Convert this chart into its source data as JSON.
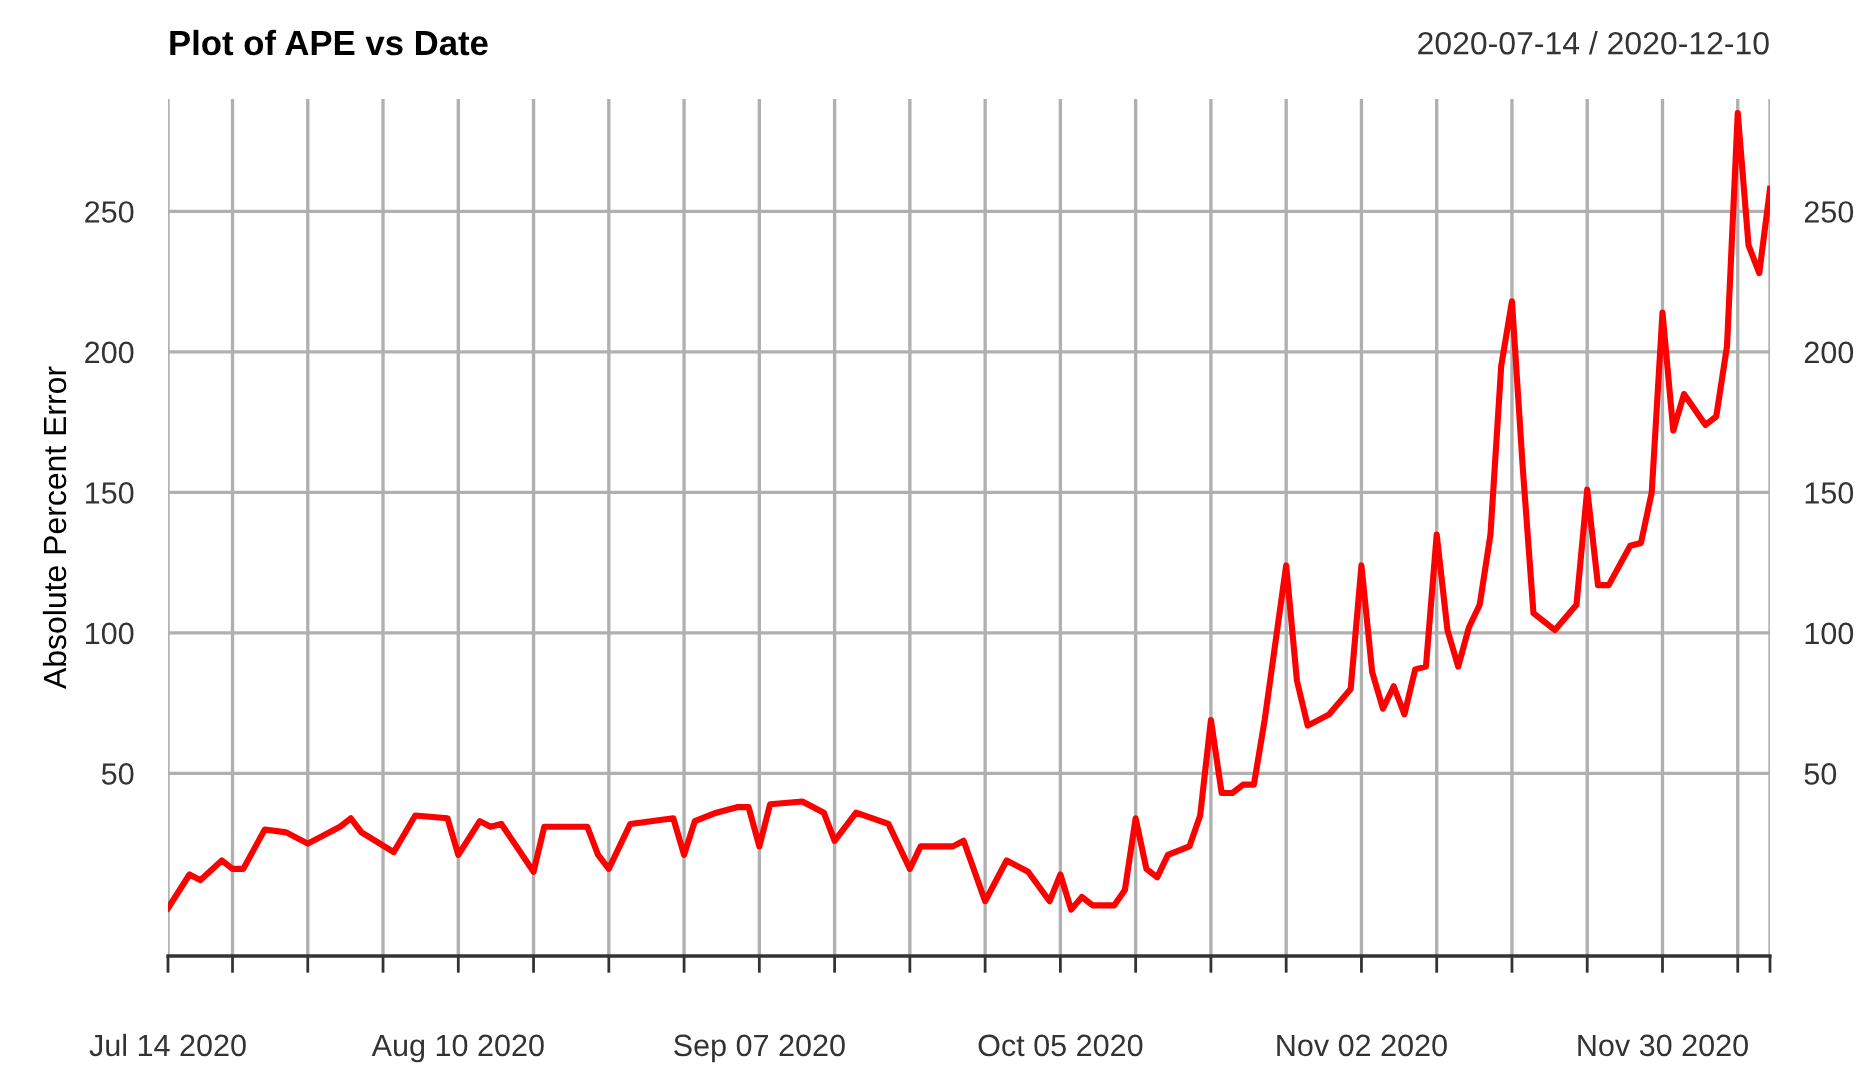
{
  "chart_data": {
    "type": "line",
    "title": "Plot of APE vs Date",
    "subtitle": "2020-07-14 / 2020-12-10",
    "ylabel": "Absolute Percent Error",
    "x": [
      "2020-07-14",
      "2020-07-16",
      "2020-07-17",
      "2020-07-19",
      "2020-07-20",
      "2020-07-21",
      "2020-07-23",
      "2020-07-25",
      "2020-07-27",
      "2020-07-30",
      "2020-07-31",
      "2020-08-01",
      "2020-08-04",
      "2020-08-06",
      "2020-08-09",
      "2020-08-10",
      "2020-08-12",
      "2020-08-13",
      "2020-08-14",
      "2020-08-17",
      "2020-08-18",
      "2020-08-22",
      "2020-08-23",
      "2020-08-24",
      "2020-08-26",
      "2020-08-30",
      "2020-08-31",
      "2020-09-01",
      "2020-09-03",
      "2020-09-05",
      "2020-09-06",
      "2020-09-07",
      "2020-09-08",
      "2020-09-11",
      "2020-09-13",
      "2020-09-14",
      "2020-09-16",
      "2020-09-19",
      "2020-09-21",
      "2020-09-22",
      "2020-09-25",
      "2020-09-26",
      "2020-09-28",
      "2020-09-30",
      "2020-10-02",
      "2020-10-04",
      "2020-10-05",
      "2020-10-06",
      "2020-10-07",
      "2020-10-08",
      "2020-10-10",
      "2020-10-11",
      "2020-10-12",
      "2020-10-13",
      "2020-10-14",
      "2020-10-15",
      "2020-10-17",
      "2020-10-18",
      "2020-10-19",
      "2020-10-20",
      "2020-10-21",
      "2020-10-22",
      "2020-10-23",
      "2020-10-24",
      "2020-10-26",
      "2020-10-27",
      "2020-10-28",
      "2020-10-30",
      "2020-11-01",
      "2020-11-02",
      "2020-11-03",
      "2020-11-04",
      "2020-11-05",
      "2020-11-06",
      "2020-11-07",
      "2020-11-08",
      "2020-11-09",
      "2020-11-10",
      "2020-11-11",
      "2020-11-12",
      "2020-11-13",
      "2020-11-14",
      "2020-11-15",
      "2020-11-16",
      "2020-11-17",
      "2020-11-18",
      "2020-11-20",
      "2020-11-22",
      "2020-11-23",
      "2020-11-24",
      "2020-11-25",
      "2020-11-27",
      "2020-11-28",
      "2020-11-29",
      "2020-11-30",
      "2020-12-01",
      "2020-12-02",
      "2020-12-04",
      "2020-12-05",
      "2020-12-06",
      "2020-12-07",
      "2020-12-08",
      "2020-12-09",
      "2020-12-10"
    ],
    "series": [
      {
        "color": "#ff0000",
        "values": [
          2,
          14,
          12,
          19,
          16,
          16,
          30,
          29,
          25,
          31,
          34,
          29,
          22,
          35,
          34,
          21,
          33,
          31,
          32,
          15,
          31,
          31,
          21,
          16,
          32,
          34,
          21,
          33,
          36,
          38,
          38,
          24,
          39,
          40,
          36,
          26,
          36,
          32,
          16,
          24,
          24,
          26,
          4.5,
          19,
          15,
          4.5,
          14,
          1.5,
          6,
          3,
          3,
          8.5,
          34,
          16,
          13,
          21,
          24,
          35,
          69,
          43,
          43,
          46,
          46,
          69,
          124,
          83,
          67,
          71,
          80,
          124,
          86,
          73,
          81,
          71,
          87,
          88,
          135,
          101,
          88,
          102,
          110,
          135,
          195,
          218,
          159,
          107,
          101,
          110,
          151,
          117,
          117,
          131,
          132,
          150,
          214,
          172,
          185,
          174,
          177,
          202,
          285,
          238,
          228,
          258
        ]
      }
    ],
    "xlim": [
      "2020-07-14",
      "2020-12-10"
    ],
    "xticks": [
      {
        "value": "2020-07-14",
        "label": "Jul 14 2020"
      },
      {
        "value": "2020-07-20",
        "label": null
      },
      {
        "value": "2020-07-27",
        "label": null
      },
      {
        "value": "2020-08-03",
        "label": null
      },
      {
        "value": "2020-08-10",
        "label": "Aug 10 2020"
      },
      {
        "value": "2020-08-17",
        "label": null
      },
      {
        "value": "2020-08-24",
        "label": null
      },
      {
        "value": "2020-08-31",
        "label": null
      },
      {
        "value": "2020-09-07",
        "label": "Sep 07 2020"
      },
      {
        "value": "2020-09-14",
        "label": null
      },
      {
        "value": "2020-09-21",
        "label": null
      },
      {
        "value": "2020-09-28",
        "label": null
      },
      {
        "value": "2020-10-05",
        "label": "Oct 05 2020"
      },
      {
        "value": "2020-10-12",
        "label": null
      },
      {
        "value": "2020-10-19",
        "label": null
      },
      {
        "value": "2020-10-26",
        "label": null
      },
      {
        "value": "2020-11-02",
        "label": "Nov 02 2020"
      },
      {
        "value": "2020-11-09",
        "label": null
      },
      {
        "value": "2020-11-16",
        "label": null
      },
      {
        "value": "2020-11-23",
        "label": null
      },
      {
        "value": "2020-11-30",
        "label": "Nov 30 2020"
      },
      {
        "value": "2020-12-07",
        "label": null
      },
      {
        "value": "2020-12-10",
        "label": null
      }
    ],
    "ylim": [
      -15,
      290
    ],
    "yticks": [
      50,
      100,
      150,
      200,
      250
    ],
    "y2lim": [
      -15,
      290
    ],
    "y2ticks": [
      50,
      100,
      150,
      200,
      250
    ],
    "grid": true,
    "line_style": "solid",
    "marker": "none"
  }
}
